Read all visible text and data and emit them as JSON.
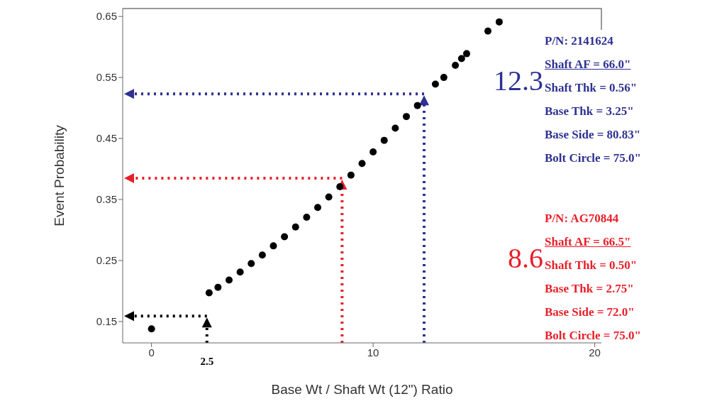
{
  "chart_data": {
    "type": "scatter",
    "xlabel": "Base Wt / Shaft Wt (12\") Ratio",
    "ylabel": "Event Probability",
    "xlim": [
      -1.3,
      20.3
    ],
    "xticks": [
      0,
      10,
      20
    ],
    "ylim": [
      0.115,
      0.663
    ],
    "yticks": [
      0.15,
      0.25,
      0.35,
      0.45,
      0.55,
      0.65
    ],
    "grid": false,
    "legend": false,
    "marker": "circle",
    "ref_lines": [
      {
        "axis": "x",
        "value": 12.3,
        "label": "12.3",
        "color": "#2e3192",
        "line_style": "dotted"
      },
      {
        "axis": "x",
        "value": 8.6,
        "label": "8.6",
        "color": "#e8202a",
        "line_style": "dotted"
      },
      {
        "axis": "x",
        "value": 2.5,
        "label": "2.5",
        "color": "#000000",
        "line_style": "dotted"
      },
      {
        "axis": "y",
        "value": 0.523,
        "color": "#2e3192",
        "line_style": "dotted"
      },
      {
        "axis": "y",
        "value": 0.385,
        "color": "#e8202a",
        "line_style": "dotted"
      },
      {
        "axis": "y",
        "value": 0.159,
        "color": "#000000",
        "line_style": "dotted"
      }
    ],
    "series": [
      {
        "color": "#000000",
        "x": [
          0,
          2.6,
          3.0,
          3.5,
          4.0,
          4.5,
          5.0,
          5.5,
          6.0,
          6.5,
          7.0,
          7.5,
          8.0,
          8.5,
          9.0,
          9.5,
          10.0,
          10.5,
          11.0,
          11.5,
          12.0,
          12.81,
          13.19,
          13.71,
          13.99,
          14.22,
          15.18,
          15.69
        ],
        "values": [
          0.138,
          0.197,
          0.206,
          0.218,
          0.231,
          0.245,
          0.259,
          0.274,
          0.289,
          0.305,
          0.321,
          0.337,
          0.354,
          0.371,
          0.39,
          0.409,
          0.428,
          0.447,
          0.467,
          0.486,
          0.504,
          0.539,
          0.55,
          0.57,
          0.581,
          0.589,
          0.626,
          0.641
        ]
      }
    ],
    "annotations": [
      "P/N: 2141624",
      "Shaft AF =  66.0\"",
      "Shaft Thk =  0.56\"",
      "Base Thk =  3.25\"",
      "Base Side = 80.83\"",
      "Bolt Circle = 75.0\"",
      "P/N: AG70844",
      "Shaft AF =  66.5\"",
      "Shaft Thk =  0.50\"",
      "Base Thk =  2.75\"",
      "Base Side =  72.0\"",
      "Bolt Circle = 75.0\""
    ]
  }
}
